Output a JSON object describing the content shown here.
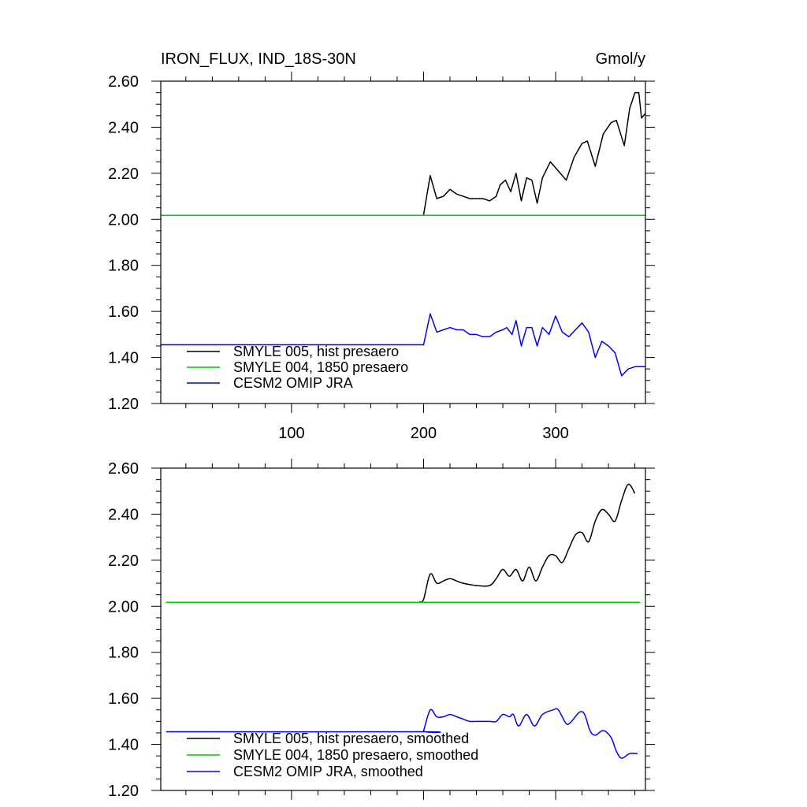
{
  "chart_data": [
    {
      "type": "line",
      "title": "IRON_FLUX, IND_18S-30N",
      "units": "Gmol/y",
      "xlim": [
        1,
        368
      ],
      "ylim": [
        1.2,
        2.6
      ],
      "x_ticks": [
        100,
        200,
        300
      ],
      "x_tick_labels": [
        "100",
        "200",
        "300"
      ],
      "y_ticks": [
        1.2,
        1.4,
        1.6,
        1.8,
        2.0,
        2.2,
        2.4,
        2.6
      ],
      "y_tick_labels": [
        "1.20",
        "1.40",
        "1.60",
        "1.80",
        "2.00",
        "2.20",
        "2.40",
        "2.60"
      ],
      "legend_position": "bottom-left",
      "smooth": false,
      "series": [
        {
          "name": "SMYLE 005, hist presaero",
          "color": "#000000",
          "points": [
            [
              200,
              2.02
            ],
            [
              205,
              2.19
            ],
            [
              210,
              2.09
            ],
            [
              215,
              2.1
            ],
            [
              220,
              2.13
            ],
            [
              225,
              2.11
            ],
            [
              230,
              2.1
            ],
            [
              235,
              2.09
            ],
            [
              240,
              2.09
            ],
            [
              245,
              2.09
            ],
            [
              250,
              2.08
            ],
            [
              255,
              2.1
            ],
            [
              258,
              2.15
            ],
            [
              262,
              2.17
            ],
            [
              266,
              2.12
            ],
            [
              270,
              2.2
            ],
            [
              274,
              2.08
            ],
            [
              278,
              2.18
            ],
            [
              282,
              2.17
            ],
            [
              286,
              2.07
            ],
            [
              290,
              2.18
            ],
            [
              296,
              2.25
            ],
            [
              302,
              2.21
            ],
            [
              308,
              2.17
            ],
            [
              314,
              2.27
            ],
            [
              320,
              2.33
            ],
            [
              324,
              2.34
            ],
            [
              330,
              2.23
            ],
            [
              336,
              2.37
            ],
            [
              342,
              2.42
            ],
            [
              346,
              2.43
            ],
            [
              352,
              2.32
            ],
            [
              356,
              2.48
            ],
            [
              360,
              2.55
            ],
            [
              363,
              2.55
            ],
            [
              365,
              2.44
            ],
            [
              368,
              2.46
            ]
          ]
        },
        {
          "name": "SMYLE 004, 1850 presaero",
          "color": "#00cc00",
          "points": [
            [
              1,
              2.017
            ],
            [
              368,
              2.017
            ]
          ]
        },
        {
          "name": "CESM2 OMIP JRA",
          "color": "#0000ff",
          "points": [
            [
              1,
              1.455
            ],
            [
              200,
              1.455
            ],
            [
              205,
              1.59
            ],
            [
              210,
              1.51
            ],
            [
              215,
              1.52
            ],
            [
              220,
              1.53
            ],
            [
              225,
              1.52
            ],
            [
              230,
              1.52
            ],
            [
              235,
              1.5
            ],
            [
              240,
              1.5
            ],
            [
              245,
              1.49
            ],
            [
              250,
              1.49
            ],
            [
              255,
              1.51
            ],
            [
              260,
              1.52
            ],
            [
              263,
              1.53
            ],
            [
              267,
              1.5
            ],
            [
              270,
              1.56
            ],
            [
              274,
              1.45
            ],
            [
              278,
              1.53
            ],
            [
              282,
              1.53
            ],
            [
              286,
              1.45
            ],
            [
              290,
              1.53
            ],
            [
              295,
              1.5
            ],
            [
              300,
              1.58
            ],
            [
              305,
              1.51
            ],
            [
              310,
              1.49
            ],
            [
              315,
              1.52
            ],
            [
              320,
              1.55
            ],
            [
              325,
              1.51
            ],
            [
              330,
              1.4
            ],
            [
              335,
              1.47
            ],
            [
              340,
              1.45
            ],
            [
              345,
              1.42
            ],
            [
              350,
              1.32
            ],
            [
              355,
              1.35
            ],
            [
              360,
              1.36
            ],
            [
              368,
              1.36
            ]
          ]
        }
      ]
    },
    {
      "type": "line",
      "title": "",
      "units": "",
      "xlim": [
        1,
        368
      ],
      "ylim": [
        1.2,
        2.6
      ],
      "x_ticks": [
        100,
        200,
        300
      ],
      "x_tick_labels": [],
      "y_ticks": [
        1.2,
        1.4,
        1.6,
        1.8,
        2.0,
        2.2,
        2.4,
        2.6
      ],
      "y_tick_labels": [
        "1.20",
        "1.40",
        "1.60",
        "1.80",
        "2.00",
        "2.20",
        "2.40",
        "2.60"
      ],
      "legend_position": "bottom-left",
      "smooth": true,
      "series": [
        {
          "name": "SMYLE 005, hist presaero, smoothed",
          "color": "#000000",
          "points": [
            [
              197,
              2.02
            ],
            [
              200,
              2.03
            ],
            [
              205,
              2.14
            ],
            [
              210,
              2.1
            ],
            [
              215,
              2.11
            ],
            [
              220,
              2.12
            ],
            [
              225,
              2.11
            ],
            [
              230,
              2.1
            ],
            [
              240,
              2.09
            ],
            [
              250,
              2.09
            ],
            [
              255,
              2.12
            ],
            [
              260,
              2.16
            ],
            [
              265,
              2.13
            ],
            [
              270,
              2.16
            ],
            [
              275,
              2.11
            ],
            [
              280,
              2.17
            ],
            [
              285,
              2.11
            ],
            [
              290,
              2.17
            ],
            [
              295,
              2.22
            ],
            [
              300,
              2.22
            ],
            [
              305,
              2.19
            ],
            [
              310,
              2.25
            ],
            [
              315,
              2.31
            ],
            [
              320,
              2.32
            ],
            [
              325,
              2.28
            ],
            [
              330,
              2.37
            ],
            [
              335,
              2.42
            ],
            [
              340,
              2.4
            ],
            [
              345,
              2.37
            ],
            [
              350,
              2.46
            ],
            [
              355,
              2.53
            ],
            [
              360,
              2.49
            ]
          ]
        },
        {
          "name": "SMYLE 004, 1850 presaero, smoothed",
          "color": "#00cc00",
          "points": [
            [
              5,
              2.017
            ],
            [
              364,
              2.017
            ]
          ]
        },
        {
          "name": "CESM2 OMIP JRA, smoothed",
          "color": "#0000ff",
          "points": [
            [
              5,
              1.455
            ],
            [
              198,
              1.455
            ],
            [
              200,
              1.46
            ],
            [
              205,
              1.55
            ],
            [
              210,
              1.52
            ],
            [
              215,
              1.52
            ],
            [
              220,
              1.53
            ],
            [
              225,
              1.52
            ],
            [
              230,
              1.51
            ],
            [
              235,
              1.5
            ],
            [
              240,
              1.5
            ],
            [
              250,
              1.5
            ],
            [
              255,
              1.5
            ],
            [
              260,
              1.53
            ],
            [
              265,
              1.52
            ],
            [
              268,
              1.53
            ],
            [
              272,
              1.48
            ],
            [
              278,
              1.53
            ],
            [
              284,
              1.48
            ],
            [
              290,
              1.53
            ],
            [
              298,
              1.55
            ],
            [
              302,
              1.55
            ],
            [
              308,
              1.49
            ],
            [
              312,
              1.5
            ],
            [
              318,
              1.54
            ],
            [
              322,
              1.53
            ],
            [
              326,
              1.46
            ],
            [
              330,
              1.44
            ],
            [
              336,
              1.46
            ],
            [
              342,
              1.43
            ],
            [
              346,
              1.37
            ],
            [
              350,
              1.34
            ],
            [
              356,
              1.36
            ],
            [
              362,
              1.36
            ]
          ]
        }
      ]
    }
  ]
}
